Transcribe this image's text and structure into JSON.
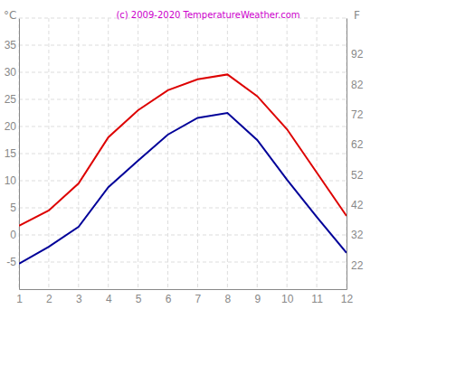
{
  "chart_data": {
    "type": "line",
    "title": "(c) 2009-2020 TemperatureWeather.com",
    "ylabel": "°C",
    "y2label": "F",
    "x": [
      1,
      2,
      3,
      4,
      5,
      6,
      7,
      8,
      9,
      10,
      11,
      12
    ],
    "xlim": [
      1,
      12
    ],
    "xticks": [
      1,
      2,
      3,
      4,
      5,
      6,
      7,
      8,
      9,
      10,
      11,
      12
    ],
    "ylim": [
      -10,
      40
    ],
    "yticks": [
      -5,
      0,
      5,
      10,
      15,
      20,
      25,
      30,
      35
    ],
    "y2lim": [
      14,
      104
    ],
    "y2ticks": [
      22,
      32,
      42,
      52,
      62,
      72,
      82,
      92
    ],
    "grid": true,
    "series": [
      {
        "color": "#dd0000",
        "values": [
          1.7,
          4.5,
          9.5,
          18,
          23,
          26.7,
          28.7,
          29.6,
          25.6,
          19.5,
          11.5,
          3.5
        ]
      },
      {
        "color": "#000099",
        "values": [
          -5.3,
          -2.2,
          1.5,
          8.8,
          13.7,
          18.5,
          21.6,
          22.5,
          17.5,
          10.2,
          3.3,
          -3.3
        ]
      }
    ]
  }
}
